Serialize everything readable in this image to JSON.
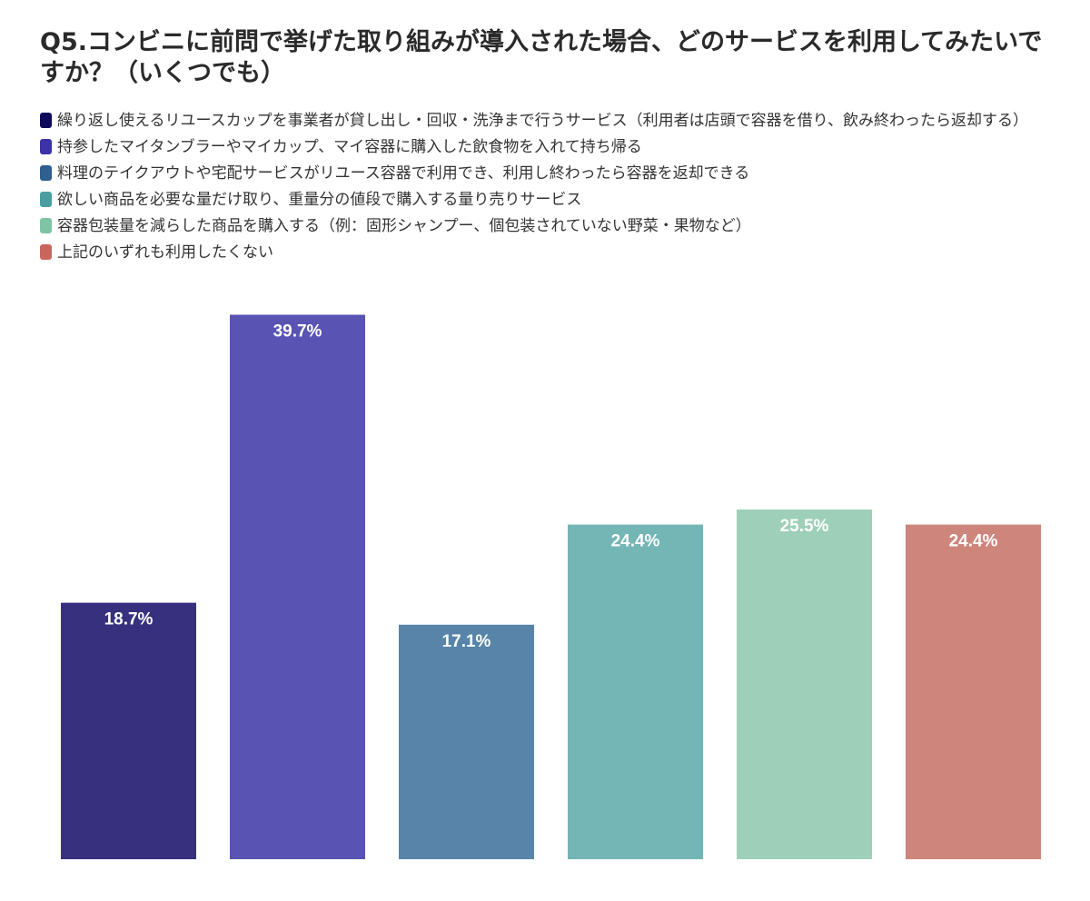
{
  "title": "Q5.コンビニに前問で挙げた取り組みが導入された場合、どのサービスを利用してみたいですか？（いくつでも）",
  "chart_data": {
    "type": "bar",
    "title": "Q5.コンビニに前問で挙げた取り組みが導入された場合、どのサービスを利用してみたいですか？（いくつでも）",
    "categories": [
      "繰り返し使えるリユースカップを事業者が貸し出し・回収・洗浄まで行うサービス（利用者は店頭で容器を借り、飲み終わったら返却する）",
      "持参したマイタンブラーやマイカップ、マイ容器に購入した飲食物を入れて持ち帰る",
      "料理のテイクアウトや宅配サービスがリユース容器で利用でき、利用し終わったら容器を返却できる",
      "欲しい商品を必要な量だけ取り、重量分の値段で購入する量り売りサービス",
      "容器包装量を減らした商品を購入する（例：固形シャンプー、個包装されていない野菜・果物など）",
      "上記のいずれも利用したくない"
    ],
    "values": [
      18.7,
      39.7,
      17.1,
      24.4,
      25.5,
      24.4
    ],
    "data_labels": [
      "18.7%",
      "39.7%",
      "17.1%",
      "24.4%",
      "25.5%",
      "24.4%"
    ],
    "legend_colors": [
      "#0d0a5c",
      "#3d32a8",
      "#2f5f8f",
      "#4a9ea0",
      "#7fc4a4",
      "#c9675e"
    ],
    "bar_colors": [
      "#36307f",
      "#5954b3",
      "#5784a8",
      "#74b5b5",
      "#9ecfb8",
      "#ce857b"
    ],
    "ylim": [
      0,
      40
    ],
    "legend_position": "top-left",
    "grid": false,
    "xlabel": "",
    "ylabel": ""
  }
}
